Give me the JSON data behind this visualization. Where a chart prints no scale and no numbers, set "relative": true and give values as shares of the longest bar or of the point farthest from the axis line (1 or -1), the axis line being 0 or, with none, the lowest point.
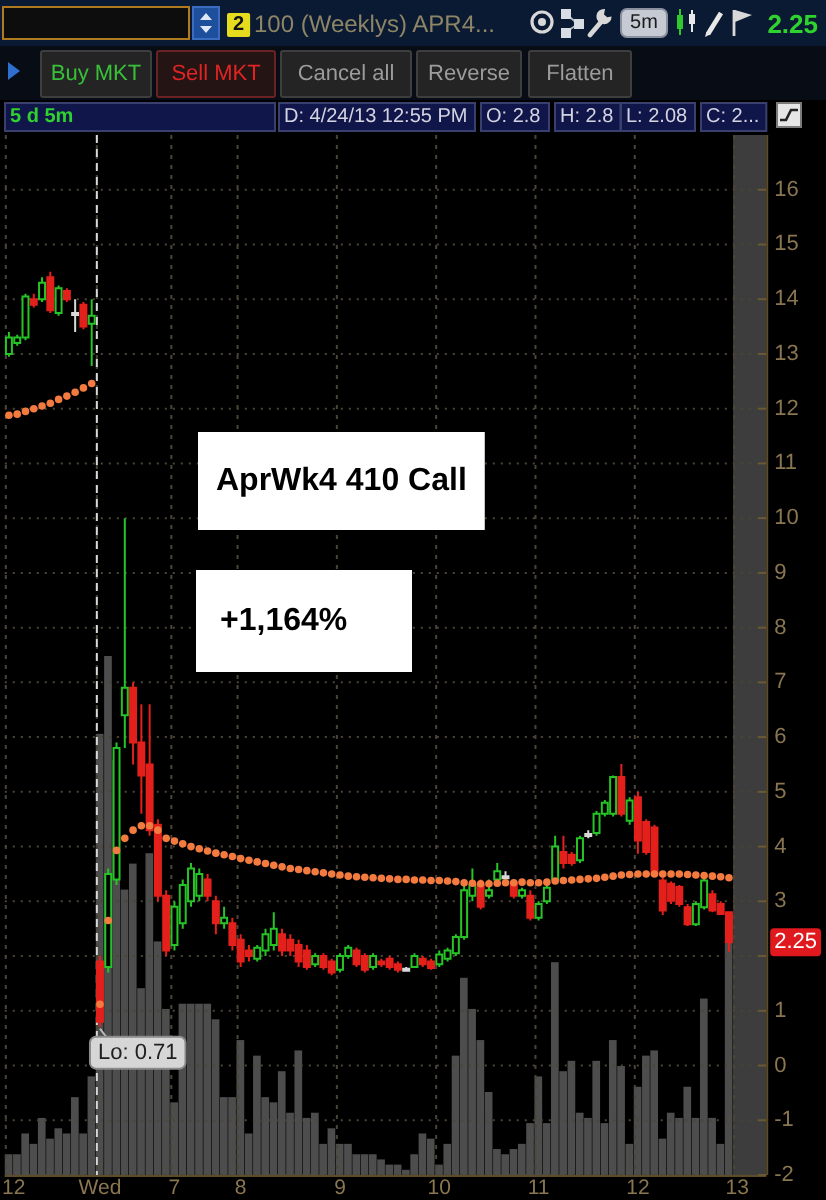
{
  "chart_data": [
    {
      "type": "other",
      "annotations": [
        "2",
        "100 (Weeklys) APR4...",
        "5m",
        "2.25",
        "Buy MKT",
        "Sell MKT",
        "Cancel all",
        "Reverse",
        "Flatten",
        "5 d 5m",
        "D: 4/24/13 12:55 PM",
        "O: 2.8",
        "H: 2.8",
        "L: 2.08",
        "C: 2..."
      ]
    },
    {
      "type": "candlestick",
      "categories": [
        "12",
        null,
        null,
        null,
        null,
        null,
        null,
        null,
        null,
        null,
        null,
        "Wed",
        null,
        null,
        null,
        null,
        null,
        null,
        null,
        null,
        "7",
        null,
        null,
        null,
        null,
        null,
        null,
        null,
        "8",
        null,
        null,
        null,
        null,
        null,
        null,
        null,
        null,
        null,
        null,
        null,
        "9",
        null,
        null,
        null,
        null,
        null,
        null,
        null,
        null,
        null,
        null,
        null,
        "10",
        null,
        null,
        null,
        null,
        null,
        null,
        null,
        null,
        null,
        null,
        null,
        "11",
        null,
        null,
        null,
        null,
        null,
        null,
        null,
        null,
        null,
        null,
        null,
        "12",
        null,
        null,
        null,
        null,
        null,
        null,
        null,
        null,
        null,
        null,
        null,
        "13",
        null,
        null,
        null
      ],
      "ohlc": [
        [
          13.0,
          13.4,
          12.95,
          13.3
        ],
        [
          13.2,
          13.35,
          13.15,
          13.3
        ],
        [
          13.3,
          14.1,
          13.25,
          14.05
        ],
        [
          14.0,
          14.1,
          13.85,
          13.9
        ],
        [
          14.0,
          14.4,
          13.95,
          14.3
        ],
        [
          14.4,
          14.5,
          13.75,
          13.8
        ],
        [
          13.75,
          14.25,
          13.7,
          14.2
        ],
        [
          14.15,
          14.2,
          13.95,
          14.0
        ],
        [
          13.75,
          14.0,
          13.4,
          13.75
        ],
        [
          13.9,
          13.95,
          13.45,
          13.5
        ],
        [
          13.55,
          14.0,
          12.78,
          13.7
        ],
        [
          1.9,
          2.0,
          0.71,
          0.8
        ],
        [
          1.8,
          3.6,
          1.7,
          3.5
        ],
        [
          3.4,
          5.9,
          3.3,
          5.8
        ],
        [
          6.4,
          10.0,
          5.8,
          6.9
        ],
        [
          6.9,
          7.0,
          5.5,
          5.9
        ],
        [
          5.9,
          6.6,
          4.6,
          5.3
        ],
        [
          5.5,
          6.6,
          4.2,
          4.3
        ],
        [
          4.4,
          4.5,
          3.0,
          3.1
        ],
        [
          3.1,
          3.2,
          2.0,
          2.1
        ],
        [
          2.2,
          3.0,
          2.1,
          2.9
        ],
        [
          2.6,
          3.4,
          2.5,
          3.3
        ],
        [
          3.0,
          3.7,
          2.9,
          3.6
        ],
        [
          3.1,
          3.6,
          3.0,
          3.5
        ],
        [
          3.4,
          3.5,
          3.0,
          3.1
        ],
        [
          3.0,
          3.1,
          2.4,
          2.6
        ],
        [
          2.6,
          2.9,
          2.5,
          2.7
        ],
        [
          2.6,
          2.7,
          2.1,
          2.2
        ],
        [
          2.3,
          2.4,
          1.8,
          1.9
        ],
        [
          2.1,
          2.2,
          1.9,
          2.0
        ],
        [
          1.95,
          2.2,
          1.9,
          2.15
        ],
        [
          2.1,
          2.5,
          2.0,
          2.4
        ],
        [
          2.2,
          2.8,
          2.1,
          2.5
        ],
        [
          2.4,
          2.5,
          2.0,
          2.1
        ],
        [
          2.3,
          2.4,
          2.0,
          2.1
        ],
        [
          2.2,
          2.3,
          1.8,
          1.9
        ],
        [
          2.1,
          2.2,
          1.75,
          1.8
        ],
        [
          1.85,
          2.05,
          1.8,
          2.0
        ],
        [
          2.0,
          2.05,
          1.75,
          1.8
        ],
        [
          1.9,
          1.95,
          1.65,
          1.7
        ],
        [
          1.75,
          2.05,
          1.7,
          2.0
        ],
        [
          2.0,
          2.2,
          1.95,
          2.15
        ],
        [
          2.1,
          2.15,
          1.8,
          1.85
        ],
        [
          2.0,
          2.05,
          1.7,
          1.75
        ],
        [
          1.8,
          2.05,
          1.75,
          2.0
        ],
        [
          1.9,
          1.95,
          1.8,
          1.85
        ],
        [
          1.95,
          2.0,
          1.75,
          1.8
        ],
        [
          1.85,
          1.9,
          1.7,
          1.75
        ],
        [
          1.77,
          1.8,
          1.72,
          1.77
        ],
        [
          1.8,
          2.05,
          1.78,
          2.0
        ],
        [
          1.95,
          2.0,
          1.8,
          1.85
        ],
        [
          1.9,
          1.95,
          1.75,
          1.78
        ],
        [
          1.85,
          2.1,
          1.8,
          2.03
        ],
        [
          1.95,
          2.15,
          1.9,
          2.1
        ],
        [
          2.05,
          2.4,
          2.0,
          2.35
        ],
        [
          2.35,
          3.3,
          2.3,
          3.2
        ],
        [
          3.1,
          3.6,
          3.0,
          3.3
        ],
        [
          3.3,
          3.4,
          2.85,
          2.9
        ],
        [
          3.1,
          3.4,
          3.05,
          3.2
        ],
        [
          3.4,
          3.7,
          3.35,
          3.55
        ],
        [
          3.46,
          3.55,
          3.35,
          3.46
        ],
        [
          3.35,
          3.4,
          3.05,
          3.1
        ],
        [
          3.1,
          3.25,
          3.05,
          3.2
        ],
        [
          3.1,
          3.2,
          2.65,
          2.7
        ],
        [
          2.7,
          3.0,
          2.65,
          2.95
        ],
        [
          3.0,
          3.35,
          2.95,
          3.25
        ],
        [
          3.4,
          4.2,
          3.35,
          4.0
        ],
        [
          3.9,
          4.2,
          3.6,
          3.7
        ],
        [
          3.85,
          3.9,
          3.65,
          3.7
        ],
        [
          3.75,
          4.2,
          3.7,
          4.15
        ],
        [
          4.23,
          4.3,
          4.15,
          4.23
        ],
        [
          4.25,
          4.65,
          4.2,
          4.6
        ],
        [
          4.6,
          4.85,
          4.55,
          4.8
        ],
        [
          4.6,
          5.3,
          4.55,
          5.27
        ],
        [
          5.27,
          5.51,
          4.55,
          4.6
        ],
        [
          4.47,
          4.9,
          4.4,
          4.84
        ],
        [
          4.9,
          5.0,
          3.87,
          4.11
        ],
        [
          4.45,
          4.5,
          3.85,
          3.9
        ],
        [
          4.35,
          4.4,
          3.45,
          3.5
        ],
        [
          3.38,
          3.44,
          2.75,
          2.83
        ],
        [
          3.32,
          3.36,
          2.95,
          3.01
        ],
        [
          3.26,
          3.3,
          2.9,
          2.95
        ],
        [
          2.89,
          2.95,
          2.55,
          2.58
        ],
        [
          2.58,
          3.0,
          2.55,
          2.95
        ],
        [
          2.89,
          3.44,
          2.85,
          3.38
        ],
        [
          3.13,
          3.2,
          2.8,
          2.83
        ],
        [
          2.95,
          3.0,
          2.75,
          2.77
        ],
        [
          2.8,
          2.8,
          2.08,
          2.25
        ],
        null,
        null,
        null,
        null
      ],
      "colors": [
        "#26c426",
        "#26c426",
        "#26c426",
        "#e3201b",
        "#26c426",
        "#e3201b",
        "#26c426",
        "#e3201b",
        "#d9d9d9",
        "#e3201b",
        "#26c426",
        "#e3201b",
        "#26c426",
        "#26c426",
        "#26c426",
        "#e3201b",
        "#e3201b",
        "#e3201b",
        "#e3201b",
        "#e3201b",
        "#26c426",
        "#26c426",
        "#26c426",
        "#26c426",
        "#e3201b",
        "#e3201b",
        "#26c426",
        "#e3201b",
        "#e3201b",
        "#e3201b",
        "#26c426",
        "#26c426",
        "#26c426",
        "#e3201b",
        "#e3201b",
        "#e3201b",
        "#e3201b",
        "#26c426",
        "#e3201b",
        "#e3201b",
        "#26c426",
        "#26c426",
        "#e3201b",
        "#e3201b",
        "#26c426",
        "#e3201b",
        "#e3201b",
        "#e3201b",
        "#d9d9d9",
        "#26c426",
        "#e3201b",
        "#e3201b",
        "#26c426",
        "#26c426",
        "#26c426",
        "#26c426",
        "#26c426",
        "#e3201b",
        "#26c426",
        "#26c426",
        "#d9d9d9",
        "#e3201b",
        "#26c426",
        "#e3201b",
        "#26c426",
        "#26c426",
        "#26c426",
        "#e3201b",
        "#e3201b",
        "#26c426",
        "#d9d9d9",
        "#26c426",
        "#26c426",
        "#26c426",
        "#e3201b",
        "#26c426",
        "#e3201b",
        "#e3201b",
        "#e3201b",
        "#e3201b",
        "#e3201b",
        "#e3201b",
        "#e3201b",
        "#26c426",
        "#26c426",
        "#e3201b",
        "#e3201b",
        "#e3201b",
        null,
        null,
        null,
        null
      ],
      "series": [
        {
          "type": "scatter",
          "color": "#f47b3f",
          "values": [
            11.88,
            11.9,
            11.95,
            12.0,
            12.05,
            12.1,
            12.17,
            12.23,
            12.3,
            12.38,
            12.46,
            1.12,
            2.65,
            3.93,
            4.15,
            4.3,
            4.38,
            4.38,
            4.3,
            4.15,
            4.1,
            4.05,
            4.0,
            3.96,
            3.92,
            3.88,
            3.85,
            3.82,
            3.78,
            3.75,
            3.72,
            3.69,
            3.66,
            3.63,
            3.6,
            3.58,
            3.56,
            3.54,
            3.52,
            3.5,
            3.48,
            3.46,
            3.45,
            3.44,
            3.43,
            3.42,
            3.41,
            3.4,
            3.4,
            3.39,
            3.39,
            3.38,
            3.38,
            3.37,
            3.36,
            3.34,
            3.33,
            3.32,
            3.32,
            3.33,
            3.34,
            3.34,
            3.35,
            3.34,
            3.34,
            3.35,
            3.37,
            3.38,
            3.39,
            3.4,
            3.41,
            3.42,
            3.44,
            3.46,
            3.48,
            3.49,
            3.5,
            3.5,
            3.5,
            3.5,
            3.5,
            3.5,
            3.49,
            3.48,
            3.47,
            3.46,
            3.45,
            3.43,
            null,
            null,
            null,
            null
          ]
        }
      ],
      "marker": "circle",
      "ylim": [
        -2,
        17
      ],
      "yticks": [
        16,
        15,
        14,
        13,
        12,
        11,
        10,
        9,
        8,
        7,
        6,
        5,
        4,
        3,
        {
          "value": 2,
          "label": null
        },
        1,
        0,
        -1,
        -2
      ],
      "grid": true,
      "annotations": [
        "AprWk4 410 Call",
        "+1,164%",
        {
          "text": "Lo: 0.71",
          "x": "Wed",
          "y": 0.71
        },
        {
          "text": "2.25",
          "y": 2.25
        }
      ],
      "ref_lines": [
        {
          "axis": "x",
          "value": "Wed",
          "color": "#d8d8d8",
          "line_style": "dashed"
        }
      ]
    },
    {
      "type": "bar",
      "relative": true,
      "color": "#4d4d4d",
      "categories": [
        null,
        null,
        null,
        null,
        null,
        null,
        null,
        null,
        null,
        null,
        null,
        null,
        null,
        null,
        null,
        null,
        null,
        null,
        null,
        null,
        null,
        null,
        null,
        null,
        null,
        null,
        null,
        null,
        null,
        null,
        null,
        null,
        null,
        null,
        null,
        null,
        null,
        null,
        null,
        null,
        null,
        null,
        null,
        null,
        null,
        null,
        null,
        null,
        null,
        null,
        null,
        null,
        null,
        null,
        null,
        null,
        null,
        null,
        null,
        null,
        null,
        null,
        null,
        null,
        null,
        null,
        null,
        null,
        null,
        null,
        null,
        null,
        null,
        null,
        null,
        null,
        null,
        null,
        null,
        null,
        null,
        null,
        null,
        null,
        null,
        null,
        null,
        null,
        null,
        null,
        null,
        null
      ],
      "values": [
        0.04,
        0.04,
        0.08,
        0.06,
        0.11,
        0.07,
        0.09,
        0.08,
        0.15,
        0.08,
        0.19,
        0.85,
        1,
        0.8,
        0.55,
        0.6,
        0.36,
        0.62,
        0.45,
        0.32,
        0.14,
        0.33,
        0.33,
        0.33,
        0.33,
        0.3,
        0.15,
        0.15,
        0.26,
        0.08,
        0.23,
        0.15,
        0.14,
        0.2,
        0.12,
        0.24,
        0.11,
        0.12,
        0.06,
        0.09,
        0.06,
        0.06,
        0.04,
        0.04,
        0.04,
        0.03,
        0.02,
        0.02,
        0.01,
        0.04,
        0.08,
        0.07,
        0.02,
        0.06,
        0.23,
        0.38,
        0.32,
        0.26,
        0.16,
        0.05,
        0.04,
        0.05,
        0.06,
        0.1,
        0.19,
        0.1,
        0.41,
        0.2,
        0.22,
        0.12,
        0.11,
        0.22,
        0.1,
        0.26,
        0.21,
        0.06,
        0.17,
        0.23,
        0.24,
        0.07,
        0.12,
        0.11,
        0.17,
        0.11,
        0.34,
        0.11,
        0.06,
        0.45,
        null,
        null,
        null,
        null
      ]
    }
  ]
}
